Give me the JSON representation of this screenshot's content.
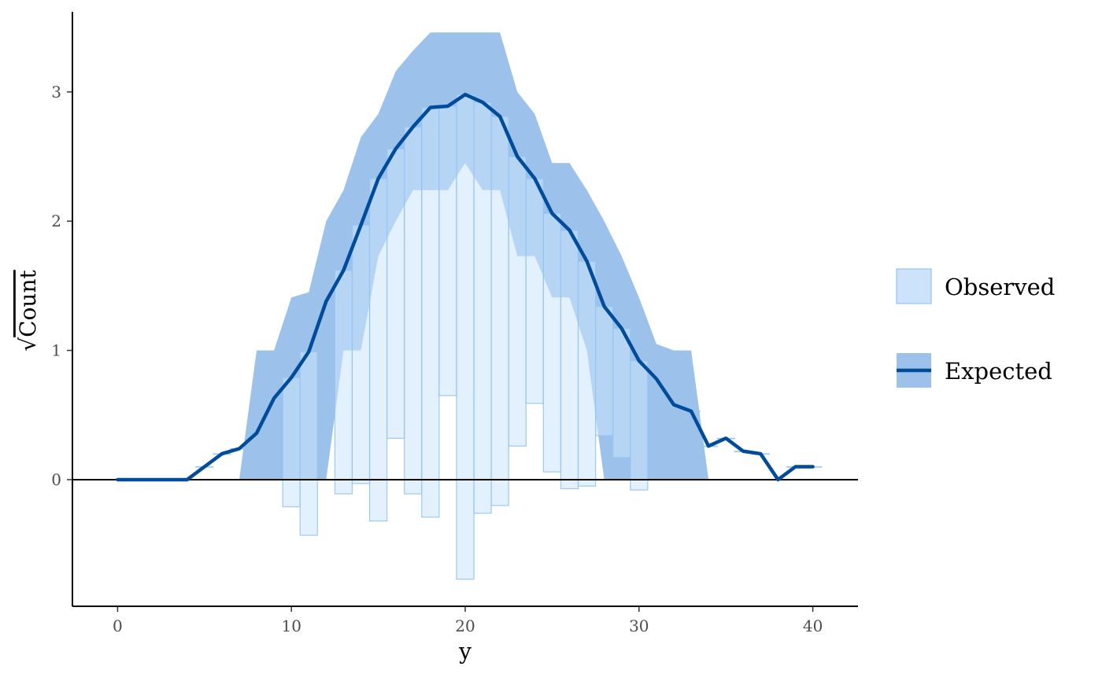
{
  "chart_data": {
    "type": "rootogram",
    "xlabel": "y",
    "ylabel": "Count",
    "ylabel_prefix": "√",
    "xlim": [
      -2.6,
      42.6
    ],
    "ylim": [
      -0.98,
      3.62
    ],
    "x_ticks": [
      0,
      10,
      20,
      30,
      40
    ],
    "y_ticks": [
      0,
      1,
      2,
      3
    ],
    "legend_position": "right",
    "colors": {
      "observed_fill": "#cce3fb",
      "observed_stroke": "#94c4f2",
      "ribbon_fill": "#9cc1eb",
      "expected_line": "#004c9a",
      "zero_line": "#000000"
    },
    "legend": [
      {
        "label": "Observed",
        "style": "box"
      },
      {
        "label": "Expected",
        "style": "line"
      }
    ],
    "expected": {
      "x": [
        0,
        1,
        2,
        3,
        4,
        5,
        6,
        7,
        8,
        9,
        10,
        11,
        12,
        13,
        14,
        15,
        16,
        17,
        18,
        19,
        20,
        21,
        22,
        23,
        24,
        25,
        26,
        27,
        28,
        29,
        30,
        31,
        32,
        33,
        34,
        35,
        36,
        37,
        38,
        39,
        40
      ],
      "y": [
        0,
        0,
        0,
        0,
        0,
        0.1,
        0.2,
        0.24,
        0.36,
        0.63,
        0.79,
        0.99,
        1.38,
        1.62,
        1.97,
        2.33,
        2.56,
        2.73,
        2.88,
        2.89,
        2.98,
        2.92,
        2.81,
        2.5,
        2.33,
        2.06,
        1.93,
        1.69,
        1.34,
        1.17,
        0.92,
        0.78,
        0.58,
        0.53,
        0.26,
        0.32,
        0.22,
        0.2,
        0,
        0.1,
        0.1
      ]
    },
    "ribbon": {
      "x": [
        7,
        8,
        9,
        10,
        11,
        12,
        13,
        14,
        15,
        16,
        17,
        18,
        19,
        20,
        21,
        22,
        23,
        24,
        25,
        26,
        27,
        28,
        29,
        30,
        31,
        32,
        33,
        34
      ],
      "lower": [
        0,
        0,
        0,
        0,
        0,
        0,
        1.0,
        1.0,
        1.73,
        2.0,
        2.24,
        2.24,
        2.24,
        2.45,
        2.24,
        2.24,
        1.73,
        1.73,
        1.41,
        1.41,
        1.0,
        0,
        0,
        0,
        0,
        0,
        0,
        0
      ],
      "upper": [
        0,
        1.0,
        1.0,
        1.41,
        1.45,
        2.0,
        2.24,
        2.65,
        2.83,
        3.16,
        3.32,
        3.46,
        3.46,
        3.46,
        3.46,
        3.46,
        3.0,
        2.83,
        2.45,
        2.45,
        2.24,
        2.0,
        1.73,
        1.41,
        1.05,
        1.0,
        1.0,
        0
      ]
    },
    "observed": {
      "x": [
        5,
        6,
        7,
        8,
        9,
        10,
        11,
        12,
        13,
        14,
        15,
        16,
        17,
        18,
        19,
        20,
        21,
        22,
        23,
        24,
        25,
        26,
        27,
        28,
        29,
        30,
        31,
        32,
        33,
        34,
        35,
        36,
        37,
        38,
        39,
        40
      ],
      "top": [
        0.1,
        0.2,
        0.24,
        0.36,
        0.63,
        0.79,
        0.99,
        1.38,
        1.62,
        1.97,
        2.33,
        2.56,
        2.73,
        2.88,
        2.89,
        2.98,
        2.92,
        2.81,
        2.5,
        2.33,
        2.06,
        1.93,
        1.69,
        1.34,
        1.17,
        0.92,
        0.78,
        0.58,
        0.53,
        0.26,
        0.32,
        0.22,
        0.2,
        0,
        0.1,
        0.1
      ],
      "bottom": [
        0.1,
        0.2,
        0.24,
        0.36,
        0.63,
        -0.21,
        -0.43,
        1.38,
        -0.11,
        -0.03,
        -0.32,
        0.32,
        -0.11,
        -0.29,
        0.65,
        -0.77,
        -0.26,
        -0.2,
        0.26,
        0.59,
        0.06,
        -0.07,
        -0.05,
        0.34,
        0.17,
        -0.08,
        0.78,
        0.58,
        0.53,
        0.26,
        0.32,
        0.22,
        0.2,
        0,
        0.1,
        0.1
      ]
    }
  }
}
